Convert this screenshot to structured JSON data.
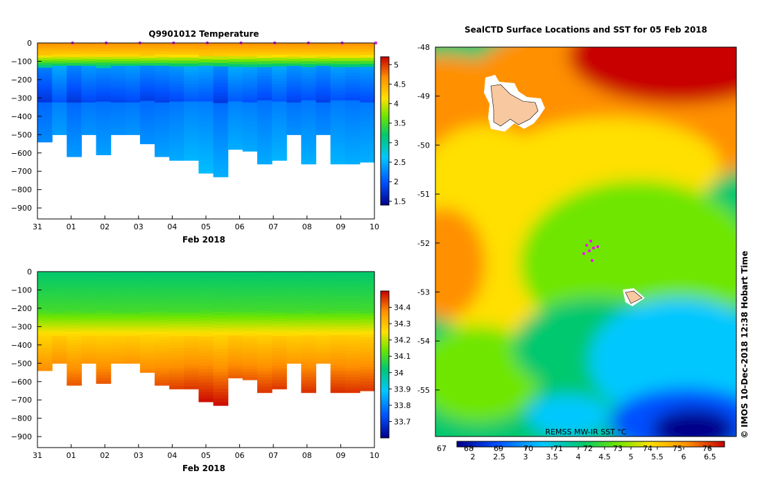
{
  "chart_data": [
    {
      "type": "heatmap",
      "title": "Q9901012  Temperature",
      "xlabel": "Feb 2018",
      "x_ticks": [
        "31",
        "01",
        "02",
        "03",
        "04",
        "05",
        "06",
        "07",
        "08",
        "09",
        "10"
      ],
      "y_ticks": [
        "0",
        "−100",
        "−200",
        "−300",
        "−400",
        "−500",
        "−600",
        "−700",
        "−800",
        "−900"
      ],
      "y_tick_values": [
        0,
        -100,
        -200,
        -300,
        -400,
        -500,
        -600,
        -700,
        -800,
        -900
      ],
      "ylim": [
        -960,
        0
      ],
      "xlim_days": [
        0,
        10
      ],
      "profile_bottom_depths_m": [
        540,
        500,
        620,
        500,
        610,
        500,
        500,
        550,
        620,
        640,
        640,
        710,
        730,
        580,
        590,
        660,
        640,
        500,
        660,
        500,
        660,
        660,
        650
      ],
      "colorbar_ticks": [
        "5",
        "4.5",
        "4",
        "3.5",
        "3",
        "2.5",
        "2",
        "1.5"
      ],
      "colorbar_values": [
        5,
        4.5,
        4,
        3.5,
        3,
        2.5,
        2,
        1.5
      ],
      "colorbar_range": [
        1.4,
        5.2
      ],
      "colors": [
        "#00008a",
        "#0050ff",
        "#00c8ff",
        "#00c86e",
        "#6ee600",
        "#ffe000",
        "#ff9000",
        "#c80000"
      ]
    },
    {
      "type": "heatmap",
      "title": "",
      "xlabel": "Feb 2018",
      "x_ticks": [
        "31",
        "01",
        "02",
        "03",
        "04",
        "05",
        "06",
        "07",
        "08",
        "09",
        "10"
      ],
      "y_ticks": [
        "0",
        "−100",
        "−200",
        "−300",
        "−400",
        "−500",
        "−600",
        "−700",
        "−800",
        "−900"
      ],
      "y_tick_values": [
        0,
        -100,
        -200,
        -300,
        -400,
        -500,
        -600,
        -700,
        -800,
        -900
      ],
      "ylim": [
        -960,
        0
      ],
      "colorbar_ticks": [
        "34.4",
        "34.3",
        "34.2",
        "34.1",
        "34",
        "33.9",
        "33.8",
        "33.7"
      ],
      "colorbar_values": [
        34.4,
        34.3,
        34.2,
        34.1,
        34.0,
        33.9,
        33.8,
        33.7
      ],
      "colorbar_range": [
        33.6,
        34.5
      ],
      "colors": [
        "#00008a",
        "#0050ff",
        "#00c8ff",
        "#00c86e",
        "#6ee600",
        "#ffe000",
        "#ff9000",
        "#c80000"
      ]
    },
    {
      "type": "heatmap",
      "title": "SealCTD Surface Locations and SST for 05 Feb 2018",
      "y_ticks": [
        "-48",
        "-49",
        "-50",
        "-51",
        "-52",
        "-53",
        "-54",
        "-55"
      ],
      "y_tick_values": [
        -48,
        -49,
        -50,
        -51,
        -52,
        -53,
        -54,
        -55
      ],
      "lat_range": [
        -55.95,
        -48.0
      ],
      "source_label": "REMSS MW-IR SST °C",
      "colorbar_top_ticks": [
        "68",
        "69",
        "70",
        "71",
        "72",
        "73",
        "74",
        "75",
        "76"
      ],
      "colorbar_bottom_ticks": [
        "2",
        "2.5",
        "3",
        "3.5",
        "4",
        "4.5",
        "5",
        "5.5",
        "6",
        "6.5"
      ],
      "colorbar_left_label": "67",
      "colors": [
        "#00008a",
        "#0050ff",
        "#00c8ff",
        "#00c86e",
        "#6ee600",
        "#ffe000",
        "#ff9000",
        "#c80000"
      ]
    }
  ],
  "copyright": "© IMOS 10-Dec-2018 12:38 Hobart Time"
}
